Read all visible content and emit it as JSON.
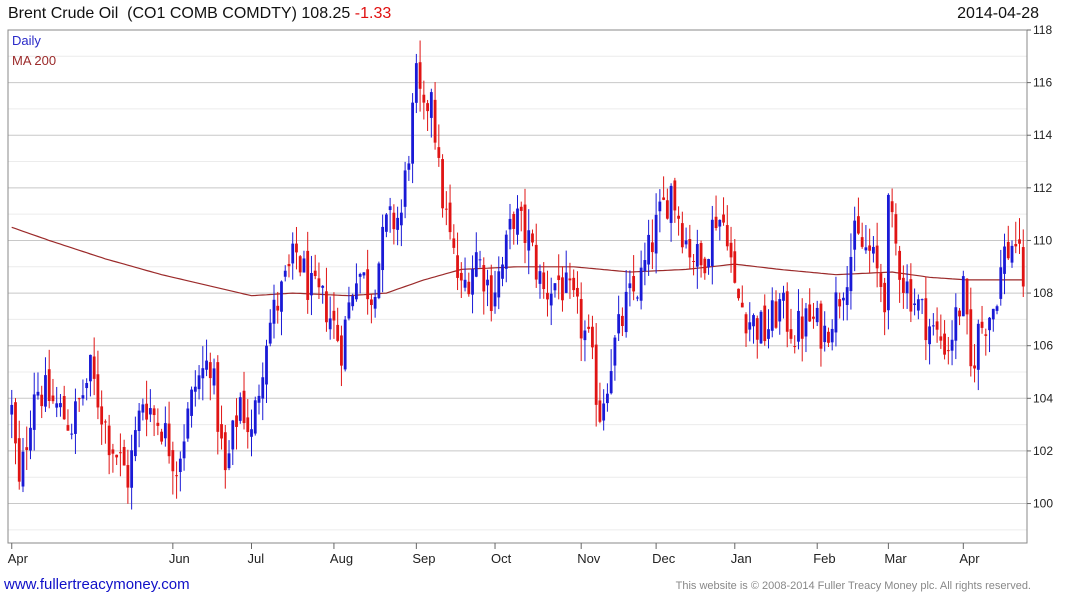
{
  "header": {
    "title": "Brent Crude Oil",
    "ticker": "(CO1 COMB COMDTY)",
    "last": "108.25",
    "change": "-1.33",
    "date": "2014-04-28"
  },
  "colors": {
    "up": "#1a1ad6",
    "down": "#e01414",
    "ma": "#9b2a2a",
    "grid": "#cfcfcf",
    "legend_daily": "#2a2ac8",
    "legend_ma": "#9b2a2a"
  },
  "footer": {
    "link": "www.fullertreacymoney.com",
    "copyright": "This website is © 2008-2014 Fuller Treacy Money plc. All rights reserved."
  },
  "chart_data": {
    "type": "candlestick",
    "title": "Brent Crude Oil (CO1 COMB COMDTY)",
    "legend": [
      "Daily",
      "MA 200"
    ],
    "legend_placement": "top-left",
    "y_axis_side": "right",
    "ylim": [
      98.5,
      118
    ],
    "y_ticks": [
      100,
      102,
      104,
      106,
      108,
      110,
      112,
      114,
      116,
      118
    ],
    "grid": true,
    "x_ticks": [
      {
        "label": "Apr",
        "index": 0
      },
      {
        "label": "Jun",
        "index": 43
      },
      {
        "label": "Jul",
        "index": 64
      },
      {
        "label": "Aug",
        "index": 86
      },
      {
        "label": "Sep",
        "index": 108
      },
      {
        "label": "Oct",
        "index": 129
      },
      {
        "label": "Nov",
        "index": 152
      },
      {
        "label": "Dec",
        "index": 172
      },
      {
        "label": "Jan",
        "index": 193
      },
      {
        "label": "Feb",
        "index": 215
      },
      {
        "label": "Mar",
        "index": 234
      },
      {
        "label": "Apr",
        "index": 254
      }
    ],
    "x_range": [
      -1,
      271
    ],
    "close_anchors": [
      [
        0,
        103.5
      ],
      [
        2,
        100.5
      ],
      [
        6,
        104.5
      ],
      [
        10,
        104.0
      ],
      [
        16,
        103.0
      ],
      [
        21,
        105.0
      ],
      [
        26,
        102.5
      ],
      [
        31,
        101.0
      ],
      [
        35,
        104.0
      ],
      [
        40,
        103.0
      ],
      [
        44,
        101.5
      ],
      [
        49,
        104.5
      ],
      [
        53,
        105.5
      ],
      [
        57,
        101.0
      ],
      [
        61,
        104.0
      ],
      [
        64,
        102.5
      ],
      [
        68,
        106.5
      ],
      [
        72,
        108.0
      ],
      [
        76,
        109.5
      ],
      [
        80,
        108.0
      ],
      [
        84,
        107.5
      ],
      [
        88,
        106.0
      ],
      [
        92,
        109.0
      ],
      [
        96,
        108.0
      ],
      [
        100,
        110.5
      ],
      [
        104,
        111.0
      ],
      [
        106,
        113.5
      ],
      [
        108,
        116.0
      ],
      [
        110,
        114.5
      ],
      [
        112,
        116.0
      ],
      [
        114,
        112.5
      ],
      [
        117,
        110.0
      ],
      [
        120,
        108.0
      ],
      [
        124,
        109.5
      ],
      [
        128,
        108.0
      ],
      [
        131,
        109.0
      ],
      [
        134,
        111.0
      ],
      [
        138,
        110.0
      ],
      [
        142,
        108.0
      ],
      [
        146,
        108.5
      ],
      [
        150,
        107.5
      ],
      [
        154,
        106.0
      ],
      [
        157,
        103.5
      ],
      [
        160,
        105.5
      ],
      [
        164,
        107.5
      ],
      [
        168,
        108.5
      ],
      [
        172,
        110.5
      ],
      [
        176,
        112.0
      ],
      [
        180,
        110.0
      ],
      [
        184,
        109.0
      ],
      [
        188,
        111.0
      ],
      [
        191,
        110.5
      ],
      [
        193,
        108.0
      ],
      [
        197,
        107.0
      ],
      [
        201,
        106.5
      ],
      [
        205,
        107.5
      ],
      [
        209,
        106.5
      ],
      [
        213,
        107.0
      ],
      [
        217,
        106.5
      ],
      [
        221,
        108.0
      ],
      [
        225,
        110.0
      ],
      [
        229,
        109.5
      ],
      [
        233,
        108.0
      ],
      [
        234,
        111.0
      ],
      [
        238,
        108.5
      ],
      [
        242,
        107.5
      ],
      [
        246,
        106.5
      ],
      [
        250,
        106.0
      ],
      [
        254,
        108.0
      ],
      [
        256,
        105.0
      ],
      [
        258,
        106.5
      ],
      [
        262,
        107.5
      ],
      [
        265,
        109.5
      ],
      [
        268,
        110.0
      ],
      [
        270,
        108.25
      ]
    ],
    "ma200_anchors": [
      [
        0,
        110.5
      ],
      [
        10,
        110.0
      ],
      [
        25,
        109.3
      ],
      [
        40,
        108.7
      ],
      [
        55,
        108.2
      ],
      [
        64,
        107.9
      ],
      [
        75,
        108.0
      ],
      [
        90,
        107.9
      ],
      [
        100,
        108.0
      ],
      [
        110,
        108.5
      ],
      [
        120,
        108.9
      ],
      [
        135,
        109.0
      ],
      [
        150,
        109.0
      ],
      [
        165,
        108.8
      ],
      [
        180,
        108.9
      ],
      [
        193,
        109.1
      ],
      [
        205,
        108.9
      ],
      [
        220,
        108.7
      ],
      [
        235,
        108.8
      ],
      [
        245,
        108.6
      ],
      [
        255,
        108.5
      ],
      [
        270,
        108.5
      ]
    ],
    "last_close": 108.25
  }
}
